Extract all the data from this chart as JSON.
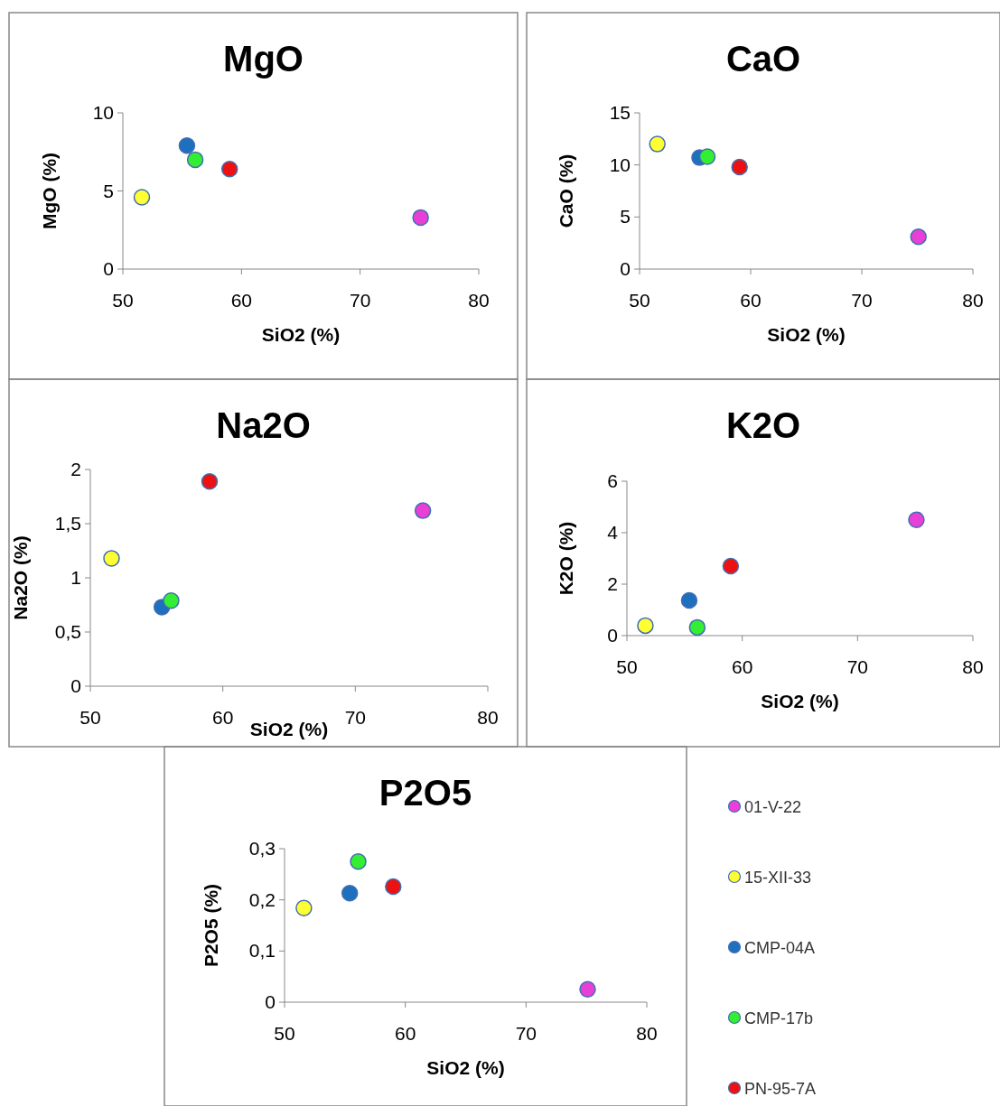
{
  "chart_data": [
    {
      "type": "scatter",
      "title": "MgO",
      "xlabel": "SiO2 (%)",
      "ylabel": "MgO (%)",
      "x": [
        75.1,
        51.6,
        55.4,
        56.1,
        59.0
      ],
      "xlim": [
        50,
        80
      ],
      "xticks": [
        50,
        60,
        70,
        80
      ],
      "ylim": [
        0,
        10
      ],
      "yticks": [
        0,
        5,
        10
      ],
      "marker": "circle",
      "legend": false,
      "series": [
        {
          "color": "#e83fd6",
          "values": [
            3.3,
            null,
            null,
            null,
            null
          ]
        },
        {
          "color": "#ffff33",
          "values": [
            null,
            4.6,
            null,
            null,
            null
          ]
        },
        {
          "color": "#1f6fbf",
          "values": [
            null,
            null,
            7.9,
            null,
            null
          ]
        },
        {
          "color": "#33ee33",
          "values": [
            null,
            null,
            null,
            7.0,
            null
          ]
        },
        {
          "color": "#ee1111",
          "values": [
            null,
            null,
            null,
            null,
            6.4
          ]
        }
      ]
    },
    {
      "type": "scatter",
      "title": "CaO",
      "xlabel": "SiO2 (%)",
      "ylabel": "CaO (%)",
      "x": [
        75.1,
        51.6,
        55.4,
        56.1,
        59.0
      ],
      "xlim": [
        50,
        80
      ],
      "xticks": [
        50,
        60,
        70,
        80
      ],
      "ylim": [
        0,
        15
      ],
      "yticks": [
        0,
        5,
        10,
        15
      ],
      "marker": "circle",
      "legend": false,
      "series": [
        {
          "color": "#e83fd6",
          "values": [
            3.1,
            null,
            null,
            null,
            null
          ]
        },
        {
          "color": "#ffff33",
          "values": [
            null,
            12.0,
            null,
            null,
            null
          ]
        },
        {
          "color": "#1f6fbf",
          "values": [
            null,
            null,
            10.7,
            null,
            null
          ]
        },
        {
          "color": "#33ee33",
          "values": [
            null,
            null,
            null,
            10.8,
            null
          ]
        },
        {
          "color": "#ee1111",
          "values": [
            null,
            null,
            null,
            null,
            9.8
          ]
        }
      ]
    },
    {
      "type": "scatter",
      "title": "Na2O",
      "xlabel": "SiO2 (%)",
      "ylabel": "Na2O (%)",
      "x": [
        75.1,
        51.6,
        55.4,
        56.1,
        59.0
      ],
      "xlim": [
        50,
        80
      ],
      "xticks": [
        50,
        60,
        70,
        80
      ],
      "ylim": [
        0,
        2
      ],
      "yticks": [
        0,
        {
          "value": 0.5,
          "label": "0,5"
        },
        1,
        {
          "value": 1.5,
          "label": "1,5"
        },
        2
      ],
      "marker": "circle",
      "legend": false,
      "series": [
        {
          "color": "#e83fd6",
          "values": [
            1.62,
            null,
            null,
            null,
            null
          ]
        },
        {
          "color": "#ffff33",
          "values": [
            null,
            1.18,
            null,
            null,
            null
          ]
        },
        {
          "color": "#1f6fbf",
          "values": [
            null,
            null,
            0.73,
            null,
            null
          ]
        },
        {
          "color": "#33ee33",
          "values": [
            null,
            null,
            null,
            0.79,
            null
          ]
        },
        {
          "color": "#ee1111",
          "values": [
            null,
            null,
            null,
            null,
            1.89
          ]
        }
      ]
    },
    {
      "type": "scatter",
      "title": "K2O",
      "xlabel": "SiO2 (%)",
      "ylabel": "K2O (%)",
      "x": [
        75.1,
        51.6,
        55.4,
        56.1,
        59.0
      ],
      "xlim": [
        50,
        80
      ],
      "xticks": [
        50,
        60,
        70,
        80
      ],
      "ylim": [
        0,
        6
      ],
      "yticks": [
        0,
        2,
        4,
        6
      ],
      "marker": "circle",
      "legend": false,
      "series": [
        {
          "color": "#e83fd6",
          "values": [
            4.5,
            null,
            null,
            null,
            null
          ]
        },
        {
          "color": "#ffff33",
          "values": [
            null,
            0.39,
            null,
            null,
            null
          ]
        },
        {
          "color": "#1f6fbf",
          "values": [
            null,
            null,
            1.37,
            null,
            null
          ]
        },
        {
          "color": "#33ee33",
          "values": [
            null,
            null,
            null,
            0.32,
            null
          ]
        },
        {
          "color": "#ee1111",
          "values": [
            null,
            null,
            null,
            null,
            2.7
          ]
        }
      ]
    },
    {
      "type": "scatter",
      "title": "P2O5",
      "xlabel": "SiO2 (%)",
      "ylabel": "P2O5 (%)",
      "x": [
        75.1,
        51.6,
        55.4,
        56.1,
        59.0
      ],
      "xlim": [
        50,
        80
      ],
      "xticks": [
        50,
        60,
        70,
        80
      ],
      "ylim": [
        0,
        0.3
      ],
      "yticks": [
        0,
        {
          "value": 0.1,
          "label": "0,1"
        },
        {
          "value": 0.2,
          "label": "0,2"
        },
        {
          "value": 0.3,
          "label": "0,3"
        }
      ],
      "marker": "circle",
      "legend": "right",
      "series": [
        {
          "name": "01-V-22",
          "color": "#e83fd6",
          "values": [
            0.025,
            null,
            null,
            null,
            null
          ]
        },
        {
          "name": "15-XII-33",
          "color": "#ffff33",
          "values": [
            null,
            0.184,
            null,
            null,
            null
          ]
        },
        {
          "name": "CMP-04A",
          "color": "#1f6fbf",
          "values": [
            null,
            null,
            0.213,
            null,
            null
          ]
        },
        {
          "name": "CMP-17b",
          "color": "#33ee33",
          "values": [
            null,
            null,
            null,
            0.275,
            null
          ]
        },
        {
          "name": "PN-95-7A",
          "color": "#ee1111",
          "values": [
            null,
            null,
            null,
            null,
            0.226
          ]
        }
      ]
    }
  ]
}
